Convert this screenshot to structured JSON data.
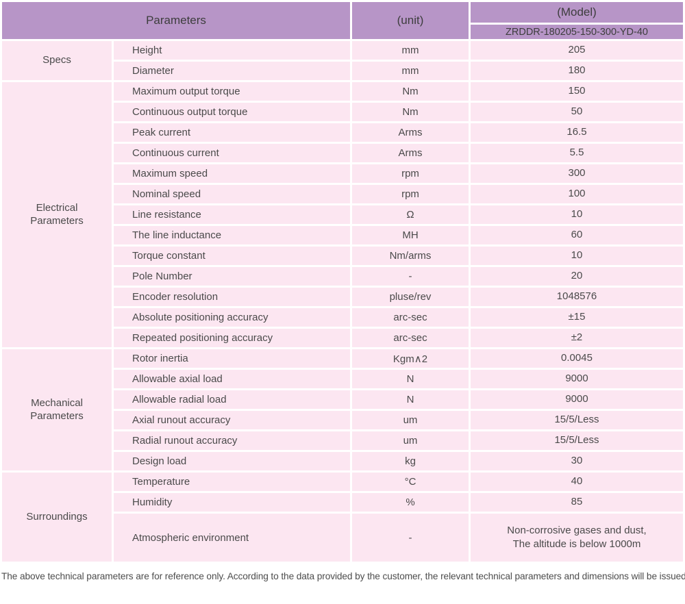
{
  "header": {
    "parameters_label": "Parameters",
    "unit_label": "(unit)",
    "model_label": "(Model)",
    "model_number": "ZRDDR-180205-150-300-YD-40"
  },
  "sections": [
    {
      "name": "Specs",
      "rows": [
        {
          "parameter": "Height",
          "unit": "mm",
          "value": "205"
        },
        {
          "parameter": "Diameter",
          "unit": "mm",
          "value": "180"
        }
      ]
    },
    {
      "name": "Electrical Parameters",
      "rows": [
        {
          "parameter": "Maximum output torque",
          "unit": "Nm",
          "value": "150"
        },
        {
          "parameter": "Continuous output torque",
          "unit": "Nm",
          "value": "50"
        },
        {
          "parameter": "Peak current",
          "unit": "Arms",
          "value": "16.5"
        },
        {
          "parameter": "Continuous current",
          "unit": "Arms",
          "value": "5.5"
        },
        {
          "parameter": "Maximum speed",
          "unit": "rpm",
          "value": "300"
        },
        {
          "parameter": "Nominal speed",
          "unit": "rpm",
          "value": "100"
        },
        {
          "parameter": "Line resistance",
          "unit": "Ω",
          "value": "10"
        },
        {
          "parameter": "The line inductance",
          "unit": "MH",
          "value": "60"
        },
        {
          "parameter": "Torque constant",
          "unit": "Nm/arms",
          "value": "10"
        },
        {
          "parameter": "Pole Number",
          "unit": "-",
          "value": "20"
        },
        {
          "parameter": "Encoder resolution",
          "unit": "pluse/rev",
          "value": "1048576"
        },
        {
          "parameter": "Absolute positioning accuracy",
          "unit": "arc-sec",
          "value": "±15"
        },
        {
          "parameter": "Repeated positioning accuracy",
          "unit": "arc-sec",
          "value": "±2"
        }
      ]
    },
    {
      "name": "Mechanical Parameters",
      "rows": [
        {
          "parameter": "Rotor inertia",
          "unit": "Kgm∧2",
          "value": "0.0045"
        },
        {
          "parameter": "Allowable axial load",
          "unit": "N",
          "value": "9000"
        },
        {
          "parameter": "Allowable radial load",
          "unit": "N",
          "value": "9000"
        },
        {
          "parameter": "Axial runout accuracy",
          "unit": "um",
          "value": "15/5/Less"
        },
        {
          "parameter": "Radial runout accuracy",
          "unit": "um",
          "value": "15/5/Less"
        },
        {
          "parameter": "Design load",
          "unit": "kg",
          "value": "30"
        }
      ]
    },
    {
      "name": "Surroundings",
      "rows": [
        {
          "parameter": "Temperature",
          "unit": "°C",
          "value": "40"
        },
        {
          "parameter": "Humidity",
          "unit": "%",
          "value": "85"
        },
        {
          "parameter": "Atmospheric environment",
          "unit": "-",
          "value": "Non-corrosive gases and dust,\nThe altitude is below 1000m"
        }
      ]
    }
  ],
  "footer": {
    "note": "The above technical parameters are for reference only. According to the data provided by the customer, the relevant technical parameters and dimensions will be issued."
  },
  "colors": {
    "header_background": "#b795c7",
    "row_background": "#fce6f1",
    "grid_gap": "#ffffff",
    "text": "#4a4a4a"
  }
}
